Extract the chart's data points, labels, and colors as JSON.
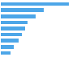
{
  "values": [
    21.5,
    13.5,
    11.0,
    8.5,
    7.5,
    6.5,
    5.5,
    4.0,
    3.0
  ],
  "bar_color": "#4da6e8",
  "background_color": "#ffffff",
  "ylim": [
    0,
    25
  ],
  "figsize": [
    1.0,
    0.71
  ],
  "dpi": 100
}
